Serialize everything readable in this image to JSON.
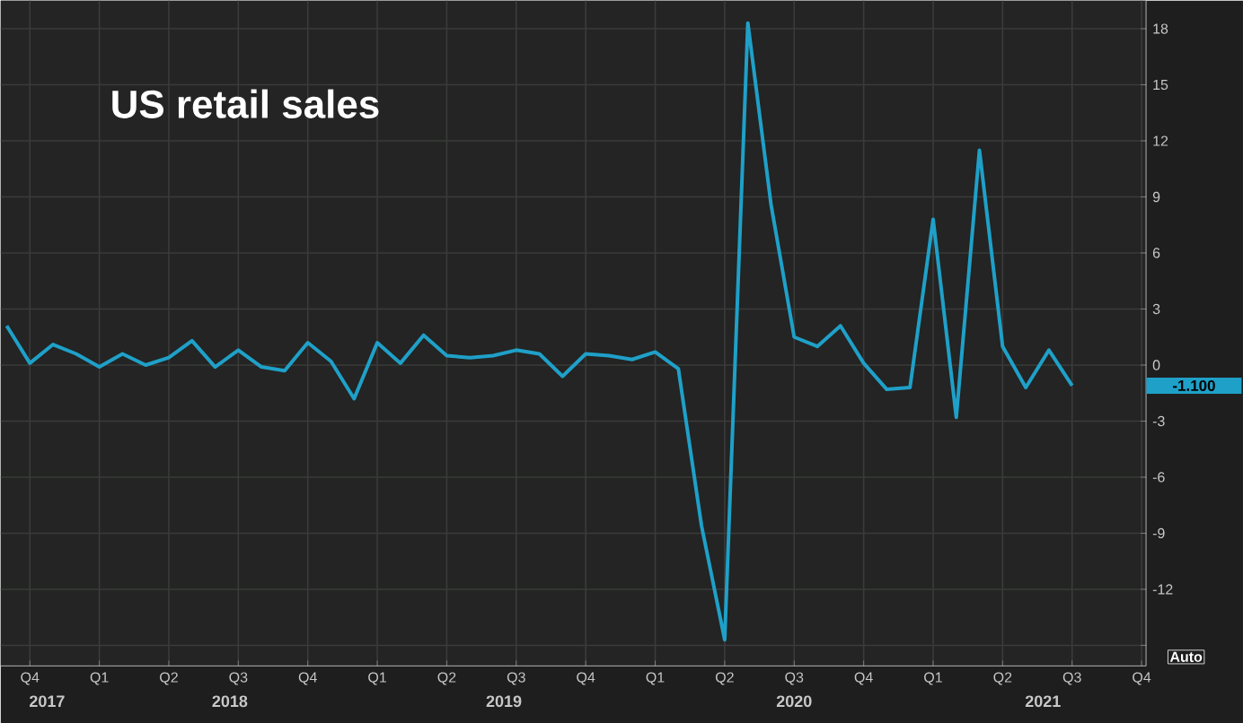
{
  "chart_data": {
    "type": "line",
    "title": "US retail sales",
    "x": [
      "2017-09",
      "2017-10",
      "2017-11",
      "2017-12",
      "2018-01",
      "2018-02",
      "2018-03",
      "2018-04",
      "2018-05",
      "2018-06",
      "2018-07",
      "2018-08",
      "2018-09",
      "2018-10",
      "2018-11",
      "2018-12",
      "2019-01",
      "2019-02",
      "2019-03",
      "2019-04",
      "2019-05",
      "2019-06",
      "2019-07",
      "2019-08",
      "2019-09",
      "2019-10",
      "2019-11",
      "2019-12",
      "2020-01",
      "2020-02",
      "2020-03",
      "2020-04",
      "2020-05",
      "2020-06",
      "2020-07",
      "2020-08",
      "2020-09",
      "2020-10",
      "2020-11",
      "2020-12",
      "2021-01",
      "2021-02",
      "2021-03",
      "2021-04",
      "2021-05",
      "2021-06",
      "2021-07"
    ],
    "values": [
      2.1,
      0.1,
      1.1,
      0.6,
      -0.1,
      0.6,
      0.0,
      0.4,
      1.3,
      -0.1,
      0.8,
      -0.1,
      -0.3,
      1.2,
      0.2,
      -1.8,
      1.2,
      0.1,
      1.6,
      0.5,
      0.4,
      0.5,
      0.8,
      0.6,
      -0.6,
      0.6,
      0.5,
      0.3,
      0.7,
      -0.2,
      -8.6,
      -14.7,
      18.3,
      8.6,
      1.5,
      1.0,
      2.1,
      0.1,
      -1.3,
      -1.2,
      7.8,
      -2.8,
      11.5,
      1.0,
      -1.2,
      0.8,
      -1.1
    ],
    "color": "#1fa0c8",
    "xlim": [
      "2017-08-24",
      "2021-10-07"
    ],
    "xticks": [
      {
        "value": "2017-10-01",
        "label": "Q4"
      },
      {
        "value": "2018-01-01",
        "label": "Q1"
      },
      {
        "value": "2018-04-01",
        "label": "Q2"
      },
      {
        "value": "2018-07-01",
        "label": "Q3"
      },
      {
        "value": "2018-10-01",
        "label": "Q4"
      },
      {
        "value": "2019-01-01",
        "label": "Q1"
      },
      {
        "value": "2019-04-01",
        "label": "Q2"
      },
      {
        "value": "2019-07-01",
        "label": "Q3"
      },
      {
        "value": "2019-10-01",
        "label": "Q4"
      },
      {
        "value": "2020-01-01",
        "label": "Q1"
      },
      {
        "value": "2020-04-01",
        "label": "Q2"
      },
      {
        "value": "2020-07-01",
        "label": "Q3"
      },
      {
        "value": "2020-10-01",
        "label": "Q4"
      },
      {
        "value": "2021-01-01",
        "label": "Q1"
      },
      {
        "value": "2021-04-01",
        "label": "Q2"
      },
      {
        "value": "2021-07-01",
        "label": "Q3"
      },
      {
        "value": "2021-10-01",
        "label": "Q4"
      }
    ],
    "x2lim": [
      "2017-08-24",
      "2021-10-07"
    ],
    "x2ticks": [
      {
        "value": "2017-10-24",
        "label": "2017"
      },
      {
        "value": "2018-06-20",
        "label": "2018"
      },
      {
        "value": "2019-06-15",
        "label": "2019"
      },
      {
        "value": "2020-07-01",
        "label": "2020"
      },
      {
        "value": "2021-05-24",
        "label": "2021"
      }
    ],
    "ylim": [
      -16.1,
      19.5
    ],
    "yticks": [
      {
        "value": -15,
        "label": null
      },
      -12,
      -9,
      -6,
      -3,
      0,
      3,
      6,
      9,
      12,
      15,
      18
    ],
    "grid": true,
    "annotations": [
      "-1.100",
      "Auto"
    ]
  }
}
